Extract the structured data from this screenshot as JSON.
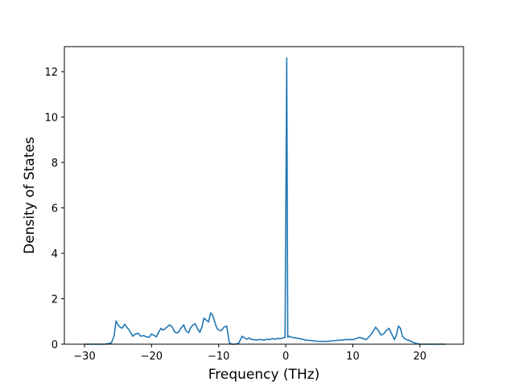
{
  "chart_data": {
    "type": "line",
    "title": "",
    "xlabel": "Frequency (THz)",
    "ylabel": "Density of States",
    "xlim": [
      -33.0,
      26.5
    ],
    "ylim": [
      0,
      13.1
    ],
    "xticks": [
      -30,
      -20,
      -10,
      0,
      10,
      20
    ],
    "xtick_labels": [
      "−30",
      "−20",
      "−10",
      "0",
      "10",
      "20"
    ],
    "yticks": [
      0,
      2,
      4,
      6,
      8,
      10,
      12
    ],
    "ytick_labels": [
      "0",
      "2",
      "4",
      "6",
      "8",
      "10",
      "12"
    ],
    "grid": false,
    "legend": "none",
    "line_color": "#1f77b4",
    "series": [
      {
        "x": [
          -30.0,
          -27.0,
          -26.0,
          -25.6,
          -25.3,
          -25.0,
          -24.7,
          -24.4,
          -24.0,
          -23.7,
          -23.4,
          -23.1,
          -22.8,
          -22.4,
          -22.0,
          -21.6,
          -21.2,
          -20.8,
          -20.4,
          -20.0,
          -19.6,
          -19.3,
          -19.0,
          -18.6,
          -18.3,
          -18.0,
          -17.6,
          -17.3,
          -16.9,
          -16.6,
          -16.3,
          -16.0,
          -15.6,
          -15.2,
          -14.9,
          -14.5,
          -14.2,
          -13.8,
          -13.5,
          -13.1,
          -12.8,
          -12.5,
          -12.2,
          -11.8,
          -11.5,
          -11.2,
          -10.9,
          -10.6,
          -10.3,
          -10.0,
          -9.6,
          -9.2,
          -8.8,
          -8.4,
          -8.0,
          -7.8,
          -7.5,
          -7.0,
          -6.5,
          -6.0,
          -5.8,
          -5.5,
          -5.2,
          -4.8,
          -4.4,
          -4.0,
          -3.6,
          -3.2,
          -2.8,
          -2.4,
          -2.0,
          -1.6,
          -1.2,
          -0.8,
          -0.4,
          -0.1,
          0.15,
          0.3,
          0.45,
          1.0,
          2.0,
          3.0,
          4.0,
          5.0,
          6.0,
          7.0,
          8.0,
          9.0,
          10.0,
          10.5,
          11.0,
          11.5,
          12.0,
          12.5,
          13.0,
          13.4,
          13.8,
          14.2,
          14.6,
          15.0,
          15.4,
          15.8,
          16.2,
          16.5,
          16.8,
          17.1,
          17.4,
          17.7,
          18.0,
          18.5,
          19.0,
          19.5,
          20.0,
          21.0,
          22.0,
          23.8
        ],
        "y": [
          0.0,
          0.0,
          0.05,
          0.35,
          1.02,
          0.85,
          0.75,
          0.7,
          0.88,
          0.75,
          0.65,
          0.5,
          0.35,
          0.45,
          0.48,
          0.35,
          0.38,
          0.33,
          0.3,
          0.45,
          0.38,
          0.32,
          0.5,
          0.7,
          0.62,
          0.68,
          0.78,
          0.85,
          0.75,
          0.55,
          0.5,
          0.52,
          0.72,
          0.85,
          0.6,
          0.5,
          0.72,
          0.85,
          0.9,
          0.65,
          0.52,
          0.75,
          1.15,
          1.05,
          0.98,
          1.38,
          1.28,
          1.0,
          0.72,
          0.62,
          0.6,
          0.75,
          0.8,
          0.05,
          0.0,
          0.0,
          0.0,
          0.05,
          0.35,
          0.25,
          0.22,
          0.28,
          0.22,
          0.2,
          0.18,
          0.2,
          0.2,
          0.18,
          0.22,
          0.2,
          0.25,
          0.22,
          0.25,
          0.25,
          0.28,
          0.3,
          12.6,
          0.3,
          0.35,
          0.3,
          0.25,
          0.18,
          0.15,
          0.12,
          0.12,
          0.15,
          0.17,
          0.2,
          0.2,
          0.25,
          0.3,
          0.25,
          0.2,
          0.35,
          0.55,
          0.75,
          0.6,
          0.4,
          0.45,
          0.6,
          0.7,
          0.45,
          0.2,
          0.4,
          0.8,
          0.7,
          0.35,
          0.25,
          0.2,
          0.15,
          0.08,
          0.03,
          0.0,
          0.0,
          0.0,
          0.0
        ]
      }
    ]
  }
}
